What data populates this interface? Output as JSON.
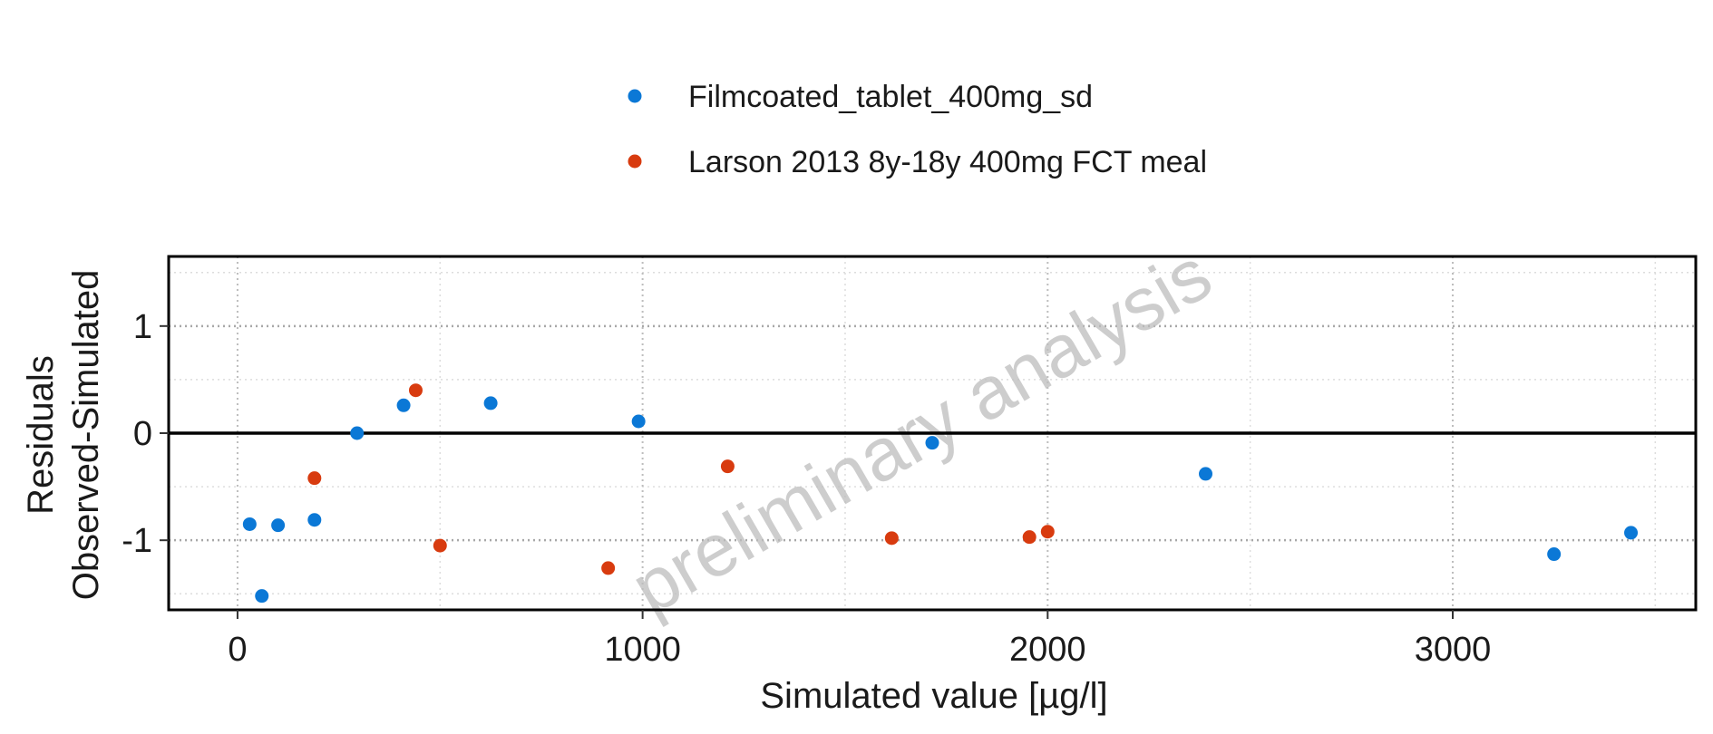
{
  "chart_data": {
    "type": "scatter",
    "xlabel": "Simulated value [µg/l]",
    "ylabel_line1": "Residuals",
    "ylabel_line2": "Observed-Simulated",
    "watermark": "preliminary analysis",
    "xlim": [
      -170,
      3600
    ],
    "ylim": [
      -1.65,
      1.65
    ],
    "x_ticks": [
      0,
      1000,
      2000,
      3000
    ],
    "y_ticks": [
      -1,
      0,
      1
    ],
    "grid": true,
    "legend_position": "top",
    "series": [
      {
        "name": "Filmcoated_tablet_400mg_sd",
        "color": "#0b78d6",
        "points": [
          [
            30,
            -0.85
          ],
          [
            60,
            -1.52
          ],
          [
            100,
            -0.86
          ],
          [
            190,
            -0.81
          ],
          [
            295,
            0.0
          ],
          [
            410,
            0.26
          ],
          [
            625,
            0.28
          ],
          [
            990,
            0.11
          ],
          [
            1715,
            -0.09
          ],
          [
            2390,
            -0.38
          ],
          [
            3250,
            -1.13
          ],
          [
            3440,
            -0.93
          ]
        ]
      },
      {
        "name": "Larson 2013 8y-18y 400mg FCT meal",
        "color": "#d83b0f",
        "points": [
          [
            190,
            -0.42
          ],
          [
            440,
            0.4
          ],
          [
            500,
            -1.05
          ],
          [
            915,
            -1.26
          ],
          [
            1210,
            -0.31
          ],
          [
            1615,
            -0.98
          ],
          [
            1955,
            -0.97
          ],
          [
            2000,
            -0.92
          ]
        ]
      }
    ]
  }
}
